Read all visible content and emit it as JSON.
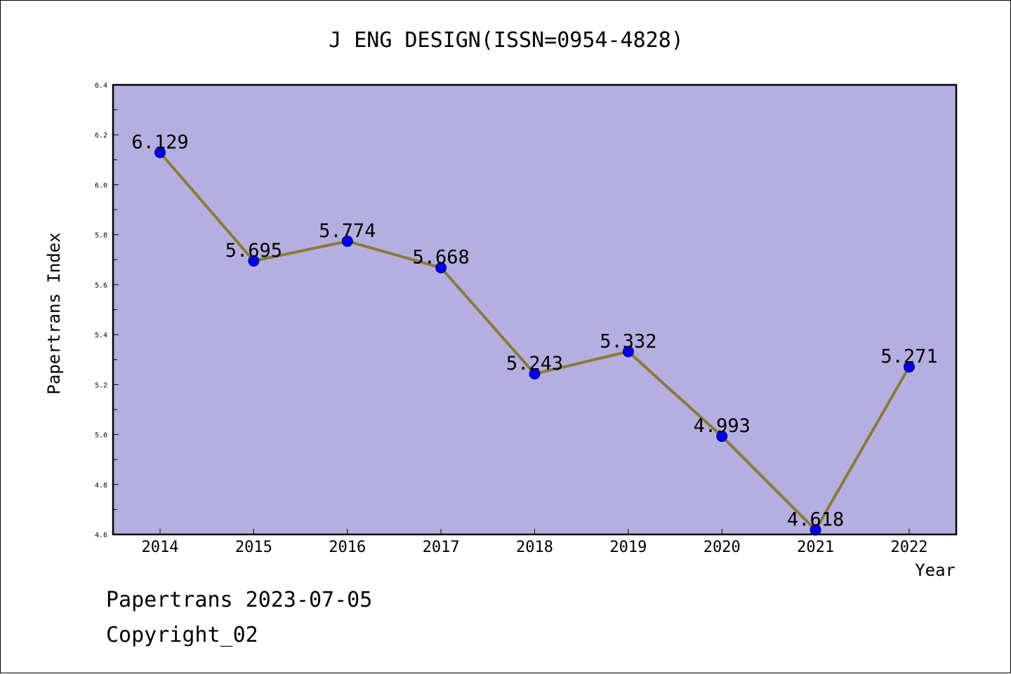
{
  "chart_data": {
    "type": "line",
    "title": "J ENG DESIGN(ISSN=0954-4828)",
    "xlabel": "Year",
    "ylabel": "Papertrans Index",
    "categories": [
      "2014",
      "2015",
      "2016",
      "2017",
      "2018",
      "2019",
      "2020",
      "2021",
      "2022"
    ],
    "series": [
      {
        "values": [
          6.129,
          5.695,
          5.774,
          5.668,
          5.243,
          5.332,
          4.993,
          4.618,
          5.271
        ],
        "labels": [
          "6.129",
          "5.695",
          "5.774",
          "5.668",
          "5.243",
          "5.332",
          "4.993",
          "4.618",
          "5.271"
        ]
      }
    ],
    "ylim": [
      4.6,
      6.4
    ],
    "yticks": [
      "4.6",
      "4.8",
      "5.0",
      "5.2",
      "5.4",
      "5.6",
      "5.8",
      "6.0",
      "6.2",
      "6.4"
    ],
    "grid": false,
    "colors": {
      "plot_background": "#b5afe1",
      "line": "#8b7a35",
      "marker": "#0000ee"
    }
  },
  "footer": {
    "line1": "Papertrans 2023-07-05",
    "line2": "Copyright_02"
  }
}
